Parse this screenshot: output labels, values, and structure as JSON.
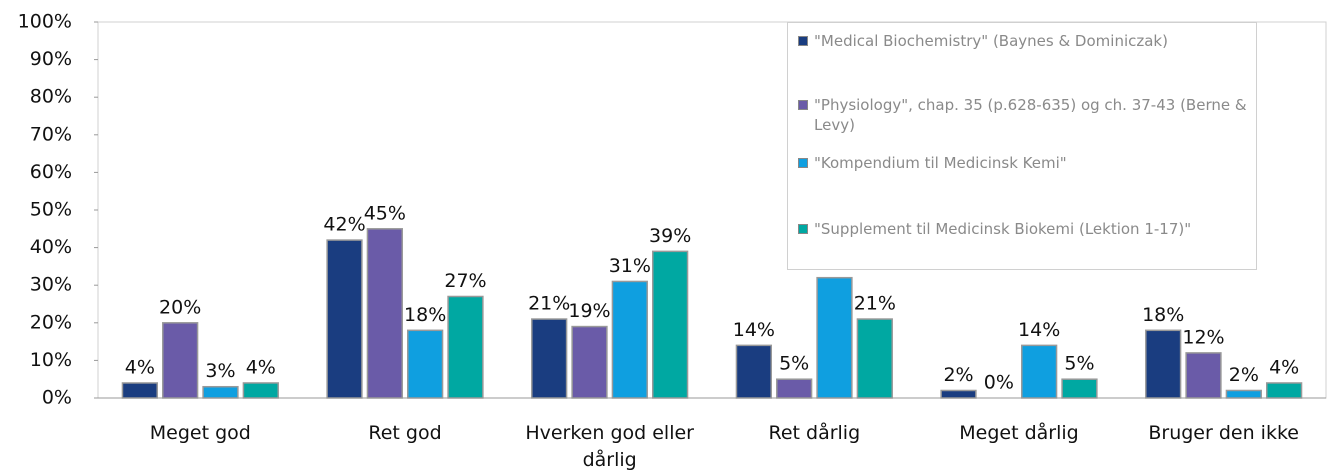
{
  "chart_data": {
    "type": "bar",
    "categories": [
      "Meget god",
      "Ret god",
      "Hverken god eller dårlig",
      "Ret dårlig",
      "Meget dårlig",
      "Bruger den ikke"
    ],
    "series": [
      {
        "name": "\"Medical Biochemistry\" (Baynes & Dominiczak)",
        "color": "#1a3d80",
        "values": [
          4,
          42,
          21,
          14,
          2,
          18
        ],
        "value_labels": [
          "4%",
          "42%",
          "21%",
          "14%",
          "2%",
          "18%"
        ]
      },
      {
        "name": "\"Physiology\", chap. 35 (p.628-635) og ch. 37-43 (Berne & Levy)",
        "color": "#6a5ba8",
        "values": [
          20,
          45,
          19,
          5,
          0,
          12
        ],
        "value_labels": [
          "20%",
          "45%",
          "19%",
          "5%",
          "0%",
          "12%"
        ]
      },
      {
        "name": "\"Kompendium til Medicinsk Kemi\"",
        "color": "#0f9fe0",
        "values": [
          3,
          18,
          31,
          32,
          14,
          2
        ],
        "value_labels": [
          "3%",
          "18%",
          "31%",
          null,
          "14%",
          "2%"
        ]
      },
      {
        "name": "\"Supplement til Medicinsk Biokemi (Lektion 1-17)\"",
        "color": "#00a8a2",
        "values": [
          4,
          27,
          39,
          21,
          5,
          4
        ],
        "value_labels": [
          "4%",
          "27%",
          "39%",
          "21%",
          "5%",
          "4%"
        ]
      }
    ],
    "ylim": [
      0,
      100
    ],
    "yticks": [
      {
        "value": 0,
        "label": "0%"
      },
      {
        "value": 10,
        "label": "10%"
      },
      {
        "value": 20,
        "label": "20%"
      },
      {
        "value": 30,
        "label": "30%"
      },
      {
        "value": 40,
        "label": "40%"
      },
      {
        "value": 50,
        "label": "50%"
      },
      {
        "value": 60,
        "label": "60%"
      },
      {
        "value": 70,
        "label": "70%"
      },
      {
        "value": 80,
        "label": "80%"
      },
      {
        "value": 90,
        "label": "90%"
      },
      {
        "value": 100,
        "label": "100%"
      }
    ],
    "legend": "top-right"
  }
}
